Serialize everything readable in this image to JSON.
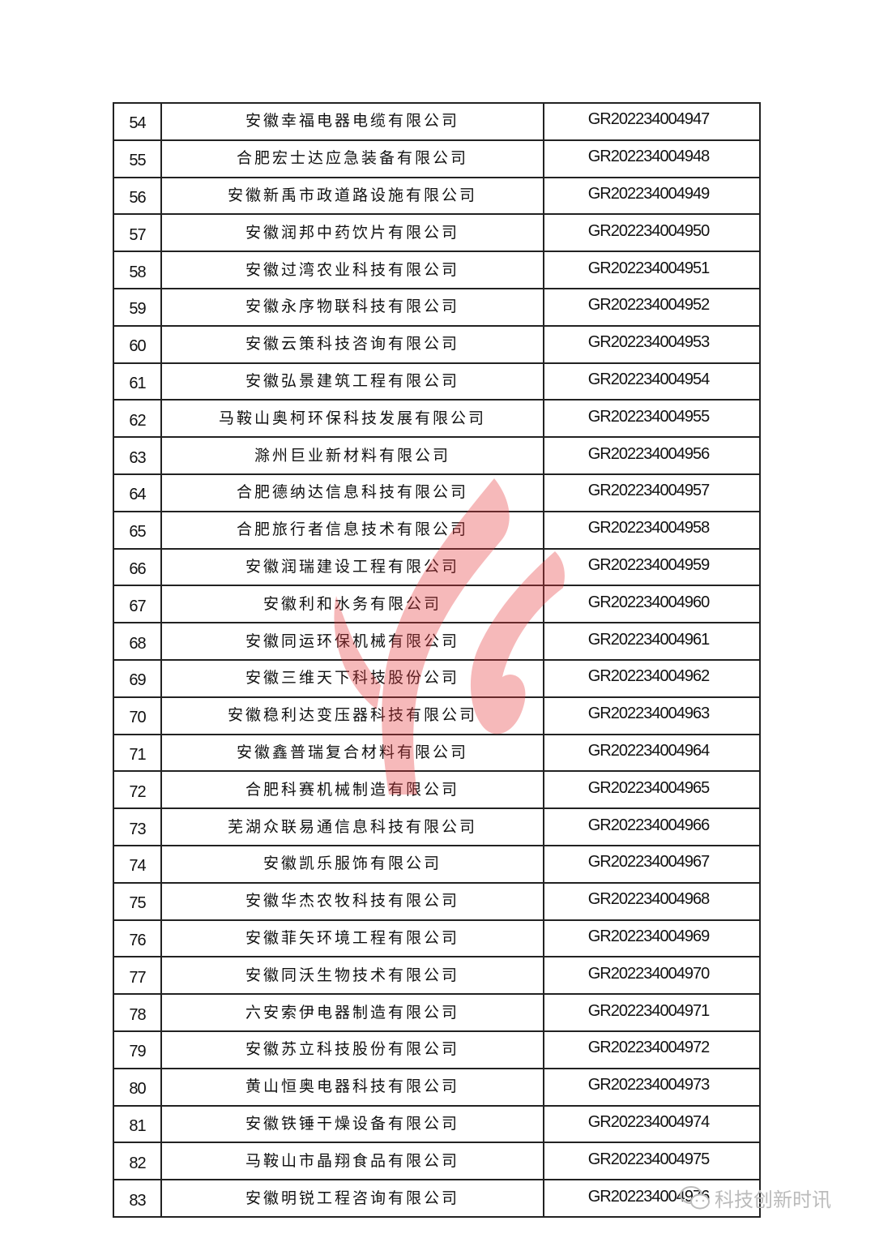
{
  "table": {
    "rows": [
      {
        "no": "54",
        "name": "安徽幸福电器电缆有限公司",
        "code": "GR202234004947"
      },
      {
        "no": "55",
        "name": "合肥宏士达应急装备有限公司",
        "code": "GR202234004948"
      },
      {
        "no": "56",
        "name": "安徽新禹市政道路设施有限公司",
        "code": "GR202234004949"
      },
      {
        "no": "57",
        "name": "安徽润邦中药饮片有限公司",
        "code": "GR202234004950"
      },
      {
        "no": "58",
        "name": "安徽过湾农业科技有限公司",
        "code": "GR202234004951"
      },
      {
        "no": "59",
        "name": "安徽永序物联科技有限公司",
        "code": "GR202234004952"
      },
      {
        "no": "60",
        "name": "安徽云策科技咨询有限公司",
        "code": "GR202234004953"
      },
      {
        "no": "61",
        "name": "安徽弘景建筑工程有限公司",
        "code": "GR202234004954"
      },
      {
        "no": "62",
        "name": "马鞍山奥柯环保科技发展有限公司",
        "code": "GR202234004955"
      },
      {
        "no": "63",
        "name": "滁州巨业新材料有限公司",
        "code": "GR202234004956"
      },
      {
        "no": "64",
        "name": "合肥德纳达信息科技有限公司",
        "code": "GR202234004957"
      },
      {
        "no": "65",
        "name": "合肥旅行者信息技术有限公司",
        "code": "GR202234004958"
      },
      {
        "no": "66",
        "name": "安徽润瑞建设工程有限公司",
        "code": "GR202234004959"
      },
      {
        "no": "67",
        "name": "安徽利和水务有限公司",
        "code": "GR202234004960"
      },
      {
        "no": "68",
        "name": "安徽同运环保机械有限公司",
        "code": "GR202234004961"
      },
      {
        "no": "69",
        "name": "安徽三维天下科技股份公司",
        "code": "GR202234004962"
      },
      {
        "no": "70",
        "name": "安徽稳利达变压器科技有限公司",
        "code": "GR202234004963"
      },
      {
        "no": "71",
        "name": "安徽鑫普瑞复合材料有限公司",
        "code": "GR202234004964"
      },
      {
        "no": "72",
        "name": "合肥科赛机械制造有限公司",
        "code": "GR202234004965"
      },
      {
        "no": "73",
        "name": "芜湖众联易通信息科技有限公司",
        "code": "GR202234004966"
      },
      {
        "no": "74",
        "name": "安徽凯乐服饰有限公司",
        "code": "GR202234004967"
      },
      {
        "no": "75",
        "name": "安徽华杰农牧科技有限公司",
        "code": "GR202234004968"
      },
      {
        "no": "76",
        "name": "安徽菲矢环境工程有限公司",
        "code": "GR202234004969"
      },
      {
        "no": "77",
        "name": "安徽同沃生物技术有限公司",
        "code": "GR202234004970"
      },
      {
        "no": "78",
        "name": "六安索伊电器制造有限公司",
        "code": "GR202234004971"
      },
      {
        "no": "79",
        "name": "安徽苏立科技股份有限公司",
        "code": "GR202234004972"
      },
      {
        "no": "80",
        "name": "黄山恒奥电器科技有限公司",
        "code": "GR202234004973"
      },
      {
        "no": "81",
        "name": "安徽铁锤干燥设备有限公司",
        "code": "GR202234004974"
      },
      {
        "no": "82",
        "name": "马鞍山市晶翔食品有限公司",
        "code": "GR202234004975"
      },
      {
        "no": "83",
        "name": "安徽明锐工程咨询有限公司",
        "code": "GR202234004976"
      }
    ]
  },
  "watermark": {
    "icon": "flame-logo-icon",
    "color": "#e8383d"
  },
  "footer": {
    "icon": "wechat-icon",
    "account": "科技创新时讯"
  }
}
